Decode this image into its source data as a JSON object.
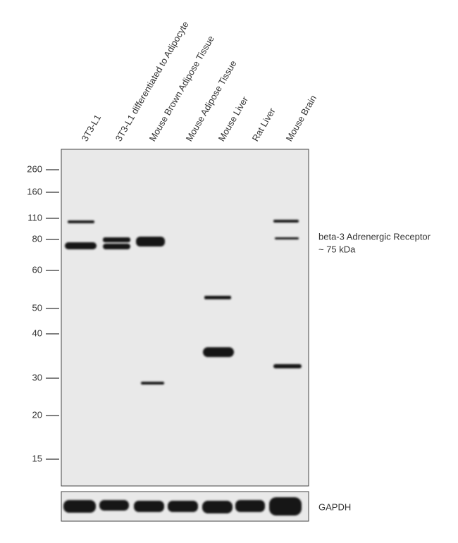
{
  "lanes": [
    "3T3-L1",
    "3T3-L1 differentiated to Adipocyte",
    "Mouse Brown Adipose Tissue",
    "Mouse Adipose Tissue",
    "Mouse Liver",
    "Rat Liver",
    "Mouse Brain"
  ],
  "markers": [
    260,
    160,
    110,
    80,
    60,
    50,
    40,
    30,
    20,
    15
  ],
  "target": {
    "name": "beta-3 Adrenergic Receptor",
    "size": "~ 75 kDa"
  },
  "loading_control": "GAPDH"
}
